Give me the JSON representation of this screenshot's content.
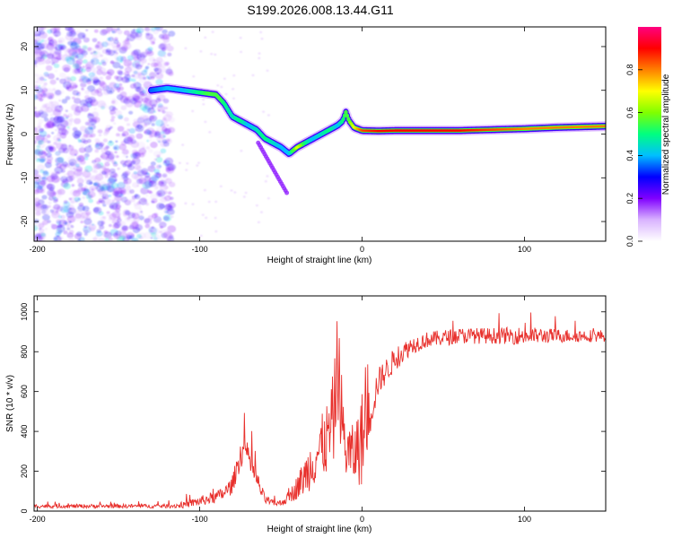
{
  "title": "S199.2026.008.13.44.G11",
  "chart_data": [
    {
      "type": "heatmap",
      "xlabel": "Height of straight line (km)",
      "ylabel": "Frequency (Hz)",
      "xlim": [
        -202,
        150
      ],
      "ylim": [
        -24.5,
        24.5
      ],
      "xticks": [
        -200,
        -100,
        0,
        100
      ],
      "yticks": [
        -20,
        -10,
        0,
        10,
        20
      ],
      "colorbar": {
        "label": "Normalized spectral amplitude",
        "range": [
          0,
          1
        ],
        "ticks": [
          0.0,
          0.2,
          0.4,
          0.6,
          0.8
        ],
        "colors": [
          "#ffffff",
          "#d9b3ff",
          "#8000ff",
          "#0000ff",
          "#00bfff",
          "#00ff80",
          "#80ff00",
          "#ffff00",
          "#ff8000",
          "#ff0000",
          "#ff0080"
        ]
      },
      "ridge": {
        "x": [
          -130,
          -120,
          -110,
          -100,
          -90,
          -85,
          -80,
          -75,
          -70,
          -65,
          -60,
          -55,
          -50,
          -45,
          -40,
          -35,
          -30,
          -25,
          -20,
          -15,
          -12,
          -10,
          -8,
          -5,
          0,
          10,
          20,
          40,
          60,
          80,
          100,
          120,
          150
        ],
        "y": [
          10,
          10.5,
          10,
          9.5,
          9,
          7,
          4,
          3,
          2,
          1,
          -1,
          -2,
          -3,
          -4.5,
          -3,
          -2,
          -1,
          0,
          1,
          2,
          3,
          5,
          3,
          1.5,
          0.8,
          0.7,
          0.8,
          0.8,
          0.8,
          1.0,
          1.2,
          1.5,
          1.8
        ],
        "amp": [
          0.35,
          0.4,
          0.4,
          0.5,
          0.6,
          0.5,
          0.45,
          0.5,
          0.4,
          0.45,
          0.5,
          0.45,
          0.4,
          0.4,
          0.7,
          0.5,
          0.4,
          0.45,
          0.5,
          0.4,
          0.5,
          0.55,
          0.6,
          0.7,
          0.85,
          0.9,
          0.9,
          0.9,
          0.9,
          0.85,
          0.8,
          0.8,
          0.8
        ]
      }
    },
    {
      "type": "line",
      "xlabel": "Height of straight line (km)",
      "ylabel": "SNR (10 * v/v)",
      "xlim": [
        -202,
        150
      ],
      "ylim": [
        0,
        1080
      ],
      "xticks": [
        -200,
        -100,
        0,
        100
      ],
      "yticks": [
        0,
        200,
        400,
        600,
        800,
        1000
      ],
      "color": "#e8302c",
      "series_envelope": {
        "x": [
          -200,
          -150,
          -120,
          -110,
          -100,
          -90,
          -85,
          -80,
          -75,
          -72,
          -70,
          -68,
          -65,
          -60,
          -55,
          -50,
          -45,
          -40,
          -35,
          -30,
          -25,
          -20,
          -17,
          -15,
          -12,
          -10,
          -5,
          -2,
          0,
          5,
          10,
          20,
          30,
          40,
          60,
          80,
          100,
          120,
          150
        ],
        "y": [
          25,
          25,
          25,
          30,
          50,
          70,
          90,
          130,
          280,
          320,
          260,
          220,
          160,
          60,
          40,
          40,
          70,
          120,
          180,
          260,
          320,
          380,
          500,
          750,
          420,
          300,
          280,
          330,
          360,
          500,
          650,
          760,
          830,
          860,
          880,
          880,
          880,
          880,
          880
        ],
        "noise": [
          10,
          10,
          10,
          15,
          25,
          30,
          35,
          45,
          70,
          70,
          60,
          55,
          50,
          25,
          15,
          15,
          30,
          60,
          100,
          140,
          160,
          200,
          250,
          300,
          180,
          150,
          150,
          200,
          250,
          120,
          70,
          60,
          45,
          40,
          40,
          40,
          45,
          35,
          30
        ]
      }
    }
  ]
}
